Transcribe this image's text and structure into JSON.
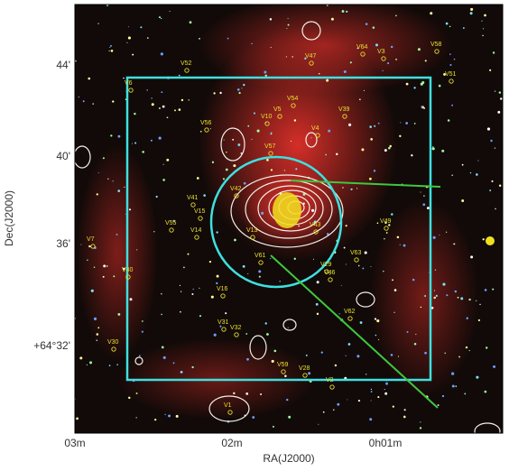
{
  "axes": {
    "x_label": "RA(J2000)",
    "y_label": "Dec(J2000)",
    "x_ticks": [
      "03m",
      "02m",
      "0h01m"
    ],
    "y_ticks": [
      "44'",
      "40'",
      "36'",
      "+64°32'"
    ]
  },
  "sources": [
    "V52",
    "V64",
    "V3",
    "V58",
    "V51",
    "V47",
    "V6",
    "V54",
    "V5",
    "V39",
    "V10",
    "V56",
    "V4",
    "V57",
    "V42",
    "V41",
    "V15",
    "V55",
    "V14",
    "V49",
    "V13",
    "V43",
    "V7",
    "V63",
    "V29",
    "V40",
    "V46",
    "V16",
    "V62",
    "V31",
    "V32",
    "V30",
    "V59",
    "V28",
    "V2",
    "V1",
    "V61"
  ]
}
